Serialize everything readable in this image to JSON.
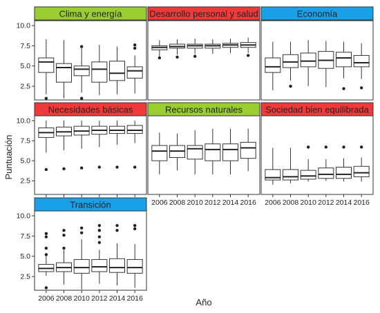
{
  "chart_data": {
    "type": "boxplot",
    "xlabel": "Año",
    "ylabel": "Puntuación",
    "categories": [
      "2006",
      "2008",
      "2010",
      "2012",
      "2014",
      "2016"
    ],
    "yticks": [
      "2.5",
      "5.0",
      "7.5",
      "10.0"
    ],
    "ylim": [
      0.8,
      10.6
    ],
    "colors": {
      "green": "#9acd32",
      "red": "#ee3a3a",
      "blue": "#1aa0e6"
    },
    "panels": [
      {
        "title": "Clima y energía",
        "color": "green",
        "boxes": [
          {
            "whisker_low": 1.5,
            "q1": 4.2,
            "median": 5.5,
            "q3": 6.0,
            "whisker_high": 8.3,
            "outliers": [
              1.0
            ]
          },
          {
            "whisker_low": 1.0,
            "q1": 3.0,
            "median": 4.8,
            "q3": 5.3,
            "whisker_high": 8.2,
            "outliers": []
          },
          {
            "whisker_low": 1.7,
            "q1": 3.8,
            "median": 4.6,
            "q3": 5.0,
            "whisker_high": 7.2,
            "outliers": [
              7.4,
              1.0
            ]
          },
          {
            "whisker_low": 1.4,
            "q1": 3.0,
            "median": 4.6,
            "q3": 5.5,
            "whisker_high": 7.6,
            "outliers": []
          },
          {
            "whisker_low": 1.5,
            "q1": 3.2,
            "median": 4.1,
            "q3": 5.6,
            "whisker_high": 7.4,
            "outliers": []
          },
          {
            "whisker_low": 1.6,
            "q1": 3.5,
            "median": 4.4,
            "q3": 4.9,
            "whisker_high": 6.3,
            "outliers": [
              7.6,
              7.2
            ]
          }
        ]
      },
      {
        "title": "Desarrollo personal y salud",
        "color": "red",
        "boxes": [
          {
            "whisker_low": 6.2,
            "q1": 7.0,
            "median": 7.3,
            "q3": 7.5,
            "whisker_high": 8.2,
            "outliers": [
              6.0
            ]
          },
          {
            "whisker_low": 6.4,
            "q1": 7.2,
            "median": 7.4,
            "q3": 7.7,
            "whisker_high": 8.3,
            "outliers": [
              6.1
            ]
          },
          {
            "whisker_low": 6.5,
            "q1": 7.2,
            "median": 7.5,
            "q3": 7.7,
            "whisker_high": 8.4,
            "outliers": [
              6.2
            ]
          },
          {
            "whisker_low": 6.5,
            "q1": 7.2,
            "median": 7.5,
            "q3": 7.7,
            "whisker_high": 8.3,
            "outliers": []
          },
          {
            "whisker_low": 6.6,
            "q1": 7.3,
            "median": 7.6,
            "q3": 7.8,
            "whisker_high": 8.4,
            "outliers": []
          },
          {
            "whisker_low": 6.6,
            "q1": 7.3,
            "median": 7.6,
            "q3": 7.9,
            "whisker_high": 8.5,
            "outliers": [
              6.3
            ]
          }
        ]
      },
      {
        "title": "Economía",
        "color": "blue",
        "boxes": [
          {
            "whisker_low": 2.0,
            "q1": 4.2,
            "median": 4.9,
            "q3": 6.0,
            "whisker_high": 8.0,
            "outliers": []
          },
          {
            "whisker_low": 3.2,
            "q1": 4.8,
            "median": 5.5,
            "q3": 6.4,
            "whisker_high": 8.0,
            "outliers": [
              2.5
            ]
          },
          {
            "whisker_low": 2.5,
            "q1": 4.9,
            "median": 5.6,
            "q3": 6.6,
            "whisker_high": 8.2,
            "outliers": []
          },
          {
            "whisker_low": 2.4,
            "q1": 4.7,
            "median": 5.7,
            "q3": 6.8,
            "whisker_high": 8.1,
            "outliers": []
          },
          {
            "whisker_low": 3.5,
            "q1": 4.9,
            "median": 6.0,
            "q3": 6.7,
            "whisker_high": 8.0,
            "outliers": [
              2.2
            ]
          },
          {
            "whisker_low": 3.4,
            "q1": 4.9,
            "median": 5.4,
            "q3": 6.3,
            "whisker_high": 7.8,
            "outliers": [
              2.3
            ]
          }
        ]
      },
      {
        "title": "Necesidades básicas",
        "color": "red",
        "boxes": [
          {
            "whisker_low": 6.0,
            "q1": 7.9,
            "median": 8.5,
            "q3": 9.1,
            "whisker_high": 10.0,
            "outliers": [
              3.9
            ]
          },
          {
            "whisker_low": 6.3,
            "q1": 8.1,
            "median": 8.6,
            "q3": 9.2,
            "whisker_high": 10.0,
            "outliers": [
              4.0
            ]
          },
          {
            "whisker_low": 6.5,
            "q1": 8.2,
            "median": 8.7,
            "q3": 9.3,
            "whisker_high": 10.0,
            "outliers": [
              4.1
            ]
          },
          {
            "whisker_low": 6.7,
            "q1": 8.3,
            "median": 8.8,
            "q3": 9.3,
            "whisker_high": 10.0,
            "outliers": [
              4.2
            ]
          },
          {
            "whisker_low": 7.0,
            "q1": 8.4,
            "median": 8.8,
            "q3": 9.3,
            "whisker_high": 10.0,
            "outliers": [
              4.2
            ]
          },
          {
            "whisker_low": 7.2,
            "q1": 8.4,
            "median": 8.8,
            "q3": 9.4,
            "whisker_high": 10.0,
            "outliers": [
              4.2
            ]
          }
        ]
      },
      {
        "title": "Recursos naturales",
        "color": "green",
        "boxes": [
          {
            "whisker_low": 3.3,
            "q1": 5.0,
            "median": 6.2,
            "q3": 6.9,
            "whisker_high": 8.5,
            "outliers": []
          },
          {
            "whisker_low": 3.8,
            "q1": 5.4,
            "median": 6.2,
            "q3": 6.9,
            "whisker_high": 8.4,
            "outliers": []
          },
          {
            "whisker_low": 3.3,
            "q1": 5.2,
            "median": 6.5,
            "q3": 6.9,
            "whisker_high": 8.8,
            "outliers": []
          },
          {
            "whisker_low": 3.3,
            "q1": 5.0,
            "median": 6.4,
            "q3": 7.1,
            "whisker_high": 9.0,
            "outliers": []
          },
          {
            "whisker_low": 3.3,
            "q1": 5.0,
            "median": 6.4,
            "q3": 7.1,
            "whisker_high": 9.0,
            "outliers": []
          },
          {
            "whisker_low": 3.7,
            "q1": 5.3,
            "median": 6.6,
            "q3": 7.3,
            "whisker_high": 9.0,
            "outliers": []
          }
        ]
      },
      {
        "title": "Sociedad bien equilibrada",
        "color": "red",
        "boxes": [
          {
            "whisker_low": 2.0,
            "q1": 2.6,
            "median": 2.9,
            "q3": 3.9,
            "whisker_high": 6.6,
            "outliers": []
          },
          {
            "whisker_low": 2.2,
            "q1": 2.6,
            "median": 3.0,
            "q3": 3.9,
            "whisker_high": 6.6,
            "outliers": []
          },
          {
            "whisker_low": 2.4,
            "q1": 2.7,
            "median": 3.1,
            "q3": 3.8,
            "whisker_high": 5.2,
            "outliers": [
              6.7
            ]
          },
          {
            "whisker_low": 2.5,
            "q1": 2.8,
            "median": 3.3,
            "q3": 4.1,
            "whisker_high": 5.2,
            "outliers": [
              6.7
            ]
          },
          {
            "whisker_low": 2.4,
            "q1": 2.8,
            "median": 3.3,
            "q3": 4.2,
            "whisker_high": 5.3,
            "outliers": [
              6.7
            ]
          },
          {
            "whisker_low": 2.4,
            "q1": 3.0,
            "median": 3.5,
            "q3": 4.3,
            "whisker_high": 5.4,
            "outliers": [
              6.7
            ]
          }
        ]
      },
      {
        "title": "Transición",
        "color": "blue",
        "boxes": [
          {
            "whisker_low": 2.6,
            "q1": 3.1,
            "median": 3.5,
            "q3": 4.0,
            "whisker_high": 5.0,
            "outliers": [
              7.8,
              7.4,
              6.0,
              5.2,
              1.1
            ]
          },
          {
            "whisker_low": 1.5,
            "q1": 3.1,
            "median": 3.6,
            "q3": 4.2,
            "whisker_high": 5.8,
            "outliers": [
              8.2,
              7.6,
              6.0
            ]
          },
          {
            "whisker_low": 0.9,
            "q1": 2.9,
            "median": 3.6,
            "q3": 4.6,
            "whisker_high": 7.1,
            "outliers": [
              8.5,
              7.9
            ]
          },
          {
            "whisker_low": 1.6,
            "q1": 3.1,
            "median": 3.7,
            "q3": 4.6,
            "whisker_high": 5.8,
            "outliers": [
              8.8,
              8.2,
              7.4,
              6.7
            ]
          },
          {
            "whisker_low": 1.4,
            "q1": 3.0,
            "median": 3.6,
            "q3": 4.7,
            "whisker_high": 6.6,
            "outliers": [
              8.8,
              8.2
            ]
          },
          {
            "whisker_low": 1.1,
            "q1": 2.9,
            "median": 3.6,
            "q3": 4.6,
            "whisker_high": 6.5,
            "outliers": [
              8.8,
              8.4
            ]
          }
        ]
      }
    ]
  }
}
